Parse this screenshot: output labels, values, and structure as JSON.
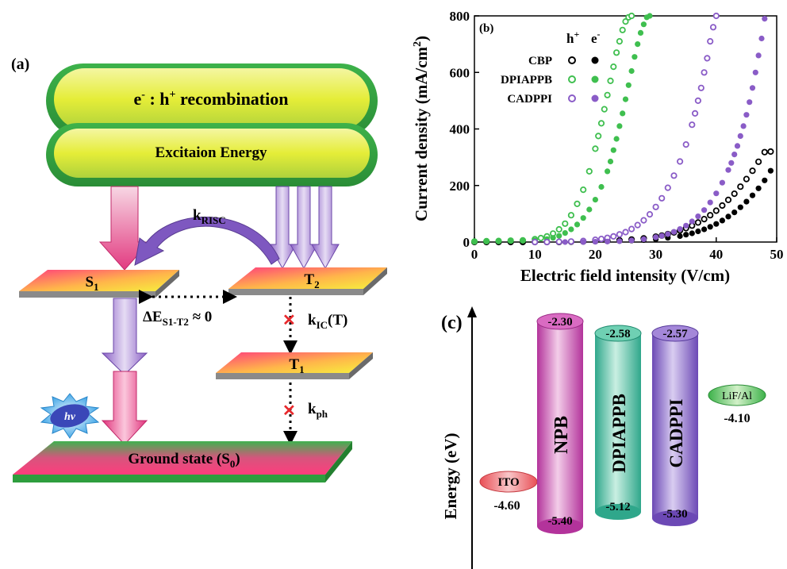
{
  "panel_a": {
    "label": "(a)",
    "recombination_prefix": "e",
    "recombination_mid": " : h",
    "recombination_suffix": " recombination",
    "sup_minus": "-",
    "sup_plus": "+",
    "excitation": "Excitaion Energy",
    "krisc_main": "k",
    "krisc_sub": "RISC",
    "s1_main": "S",
    "s1_sub": "1",
    "t2_main": "T",
    "t2_sub": "2",
    "t1_main": "T",
    "t1_sub": "1",
    "delta_main": "ΔE",
    "delta_sub": "S1-T2",
    "delta_rest": " ≈ 0",
    "kic_main": "k",
    "kic_sub": "IC",
    "kic_rest": "(T)",
    "kph_main": "k",
    "kph_sub": "ph",
    "hv": "hν",
    "ground_main": "Ground state (S",
    "ground_sub": "0",
    "ground_end": ")",
    "cross": "✕"
  },
  "panel_b": {
    "label": "(b)"
  },
  "panel_c": {
    "label": "(c)",
    "ylabel": "Energy (eV)",
    "layers": [
      {
        "name": "ITO",
        "top": "",
        "bottom": "-4.60"
      },
      {
        "name": "NPB",
        "top": "-2.30",
        "bottom": "-5.40"
      },
      {
        "name": "DPIAPPB",
        "top": "-2.58",
        "bottom": "-5.12"
      },
      {
        "name": "CADPPI",
        "top": "-2.57",
        "bottom": "-5.30"
      },
      {
        "name": "LiF/Al",
        "top": "",
        "bottom": "-4.10"
      }
    ]
  },
  "chart_data": {
    "type": "scatter",
    "title": "",
    "xlabel": "Electric field intensity (V/cm)",
    "ylabel": "Current density (mA/cm²)",
    "ylabel_main": "Current density (mA/cm",
    "ylabel_sup": "2",
    "ylabel_end": ")",
    "xlim": [
      0,
      50
    ],
    "ylim": [
      0,
      800
    ],
    "xticks": [
      0,
      10,
      20,
      30,
      40,
      50
    ],
    "yticks": [
      0,
      200,
      400,
      600,
      800
    ],
    "legend_header_h": "h",
    "legend_header_h_sup": "+",
    "legend_header_e": "e",
    "legend_header_e_sup": "-",
    "legend_position": "top-left",
    "series": [
      {
        "name": "CBP",
        "carrier": "h+",
        "color": "#000000",
        "marker": "open",
        "x": [
          0,
          2,
          4,
          6,
          8,
          10,
          12,
          14,
          16,
          18,
          20,
          22,
          24,
          26,
          28,
          30,
          31,
          32,
          33,
          34,
          35,
          36,
          37,
          38,
          39,
          40,
          41,
          42,
          43,
          44,
          45,
          46,
          47,
          48,
          49
        ],
        "y": [
          0,
          0,
          0,
          0,
          0,
          0,
          0,
          0,
          1,
          2,
          3,
          4,
          6,
          9,
          13,
          19,
          23,
          28,
          34,
          41,
          49,
          58,
          69,
          81,
          95,
          111,
          129,
          149,
          171,
          196,
          223,
          252,
          284,
          318,
          320
        ]
      },
      {
        "name": "CBP",
        "carrier": "e-",
        "color": "#000000",
        "marker": "filled",
        "x": [
          0,
          2,
          4,
          6,
          8,
          10,
          12,
          14,
          16,
          18,
          20,
          22,
          24,
          26,
          28,
          30,
          32,
          34,
          35,
          36,
          37,
          38,
          39,
          40,
          41,
          42,
          43,
          44,
          45,
          46,
          47,
          48,
          49
        ],
        "y": [
          0,
          0,
          0,
          0,
          0,
          0,
          0,
          0,
          0,
          1,
          2,
          3,
          4,
          5,
          7,
          10,
          15,
          21,
          26,
          31,
          38,
          45,
          54,
          64,
          76,
          90,
          105,
          123,
          143,
          165,
          190,
          218,
          252
        ]
      },
      {
        "name": "DPIAPPB",
        "carrier": "h+",
        "color": "#3fbf4f",
        "marker": "open",
        "x": [
          0,
          2,
          4,
          6,
          8,
          10,
          11,
          12,
          13,
          14,
          15,
          16,
          17,
          18,
          19,
          20,
          20.5,
          21,
          21.5,
          22,
          22.5,
          23,
          23.5,
          24,
          24.5,
          25,
          25.5,
          26
        ],
        "y": [
          2,
          3,
          4,
          5,
          6,
          10,
          14,
          20,
          30,
          45,
          65,
          95,
          135,
          185,
          250,
          330,
          375,
          420,
          470,
          520,
          570,
          620,
          670,
          710,
          750,
          780,
          795,
          800
        ]
      },
      {
        "name": "DPIAPPB",
        "carrier": "e-",
        "color": "#3fbf4f",
        "marker": "filled",
        "x": [
          0,
          2,
          4,
          6,
          8,
          10,
          12,
          13,
          14,
          15,
          16,
          17,
          18,
          19,
          20,
          21,
          22,
          22.5,
          23,
          23.5,
          24,
          24.5,
          25,
          25.5,
          26,
          26.5,
          27,
          27.5,
          28,
          28.5,
          29
        ],
        "y": [
          1,
          2,
          3,
          4,
          5,
          6,
          10,
          15,
          22,
          32,
          45,
          62,
          85,
          115,
          150,
          195,
          250,
          285,
          325,
          365,
          410,
          455,
          505,
          555,
          605,
          655,
          700,
          740,
          770,
          795,
          800
        ]
      },
      {
        "name": "CADPPI",
        "carrier": "h+",
        "color": "#8a5cc7",
        "marker": "open",
        "x": [
          10,
          12,
          14,
          16,
          18,
          20,
          21,
          22,
          23,
          24,
          25,
          26,
          27,
          28,
          29,
          30,
          31,
          32,
          33,
          34,
          35,
          36,
          36.5,
          37,
          37.5,
          38,
          38.5,
          39,
          39.5,
          40
        ],
        "y": [
          0,
          0,
          1,
          2,
          4,
          8,
          11,
          15,
          20,
          27,
          35,
          46,
          60,
          77,
          98,
          124,
          155,
          192,
          235,
          285,
          345,
          415,
          455,
          500,
          545,
          600,
          650,
          710,
          760,
          800
        ]
      },
      {
        "name": "CADPPI",
        "carrier": "e-",
        "color": "#8a5cc7",
        "marker": "filled",
        "x": [
          15,
          18,
          20,
          22,
          24,
          26,
          28,
          30,
          31,
          32,
          33,
          34,
          35,
          36,
          37,
          38,
          39,
          40,
          41,
          42,
          42.5,
          43,
          43.5,
          44,
          44.5,
          45,
          45.5,
          46,
          46.5,
          47,
          47.5,
          48
        ],
        "y": [
          0,
          0,
          1,
          2,
          3,
          6,
          10,
          17,
          22,
          28,
          36,
          46,
          58,
          73,
          91,
          113,
          140,
          172,
          210,
          255,
          280,
          310,
          340,
          375,
          410,
          450,
          495,
          545,
          600,
          660,
          720,
          790
        ]
      }
    ]
  }
}
